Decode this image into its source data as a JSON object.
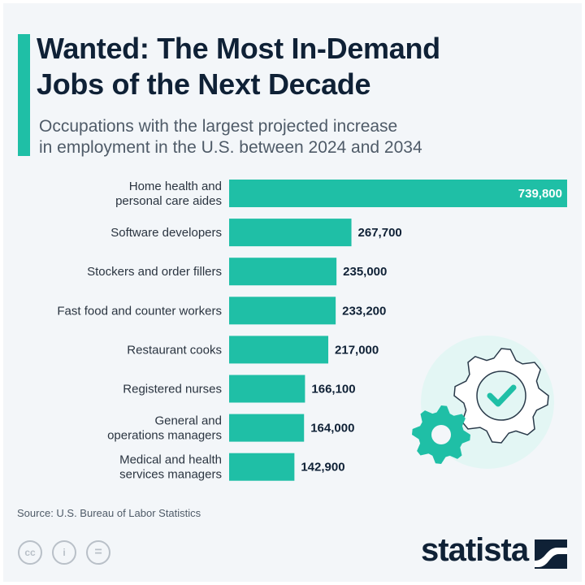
{
  "header": {
    "title_line1": "Wanted: The Most In-Demand",
    "title_line2": "Jobs of the Next Decade",
    "subtitle_line1": "Occupations with the largest projected increase",
    "subtitle_line2": "in employment in the U.S. between 2024 and 2034"
  },
  "chart_data": {
    "type": "bar",
    "orientation": "horizontal",
    "categories": [
      [
        "Home health and",
        "personal care aides"
      ],
      [
        "Software developers"
      ],
      [
        "Stockers and order fillers"
      ],
      [
        "Fast food and counter workers"
      ],
      [
        "Restaurant cooks"
      ],
      [
        "Registered nurses"
      ],
      [
        "General and",
        "operations managers"
      ],
      [
        "Medical and health",
        "services managers"
      ]
    ],
    "values": [
      739800,
      267700,
      235000,
      233200,
      217000,
      166100,
      164000,
      142900
    ],
    "value_labels": [
      "739,800",
      "267,700",
      "235,000",
      "233,200",
      "217,000",
      "166,100",
      "164,000",
      "142,900"
    ],
    "bar_color": "#1fbfa6",
    "grid": false
  },
  "footer": {
    "source": "Source: U.S. Bureau of Labor Statistics",
    "license_icons": [
      "cc-icon",
      "by-icon",
      "nd-icon"
    ],
    "license_labels": [
      "cc",
      "i",
      "="
    ],
    "logo": "statista"
  }
}
